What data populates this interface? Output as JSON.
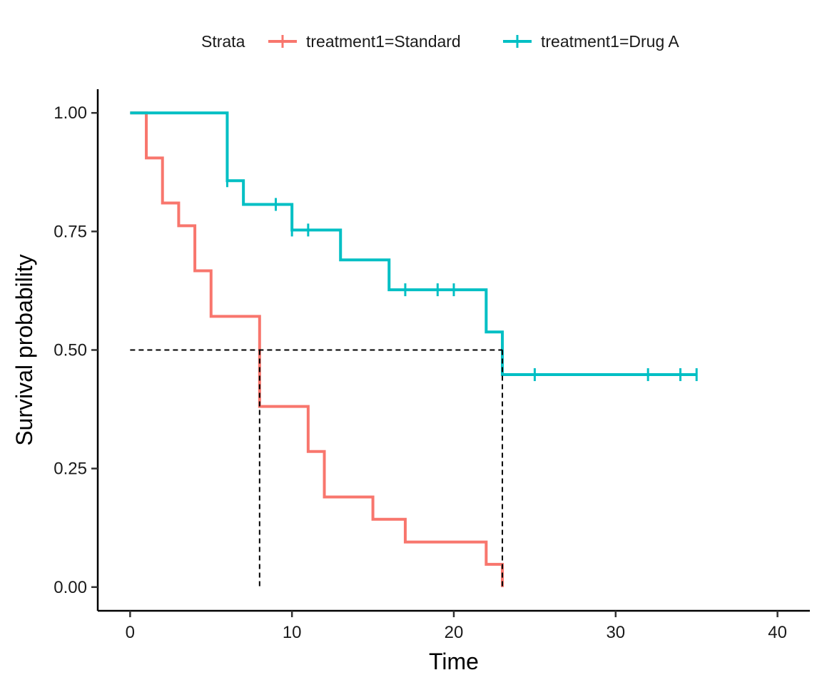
{
  "chart_data": {
    "type": "line",
    "subtype": "kaplan-meier-step",
    "xlabel": "Time",
    "ylabel": "Survival probability",
    "xlim": [
      -2,
      42
    ],
    "ylim": [
      -0.05,
      1.05
    ],
    "x_ticks": [
      "0",
      "10",
      "20",
      "30",
      "40"
    ],
    "y_ticks": [
      "0.00",
      "0.25",
      "0.50",
      "0.75",
      "1.00"
    ],
    "legend": {
      "title": "Strata",
      "position": "top",
      "entries": [
        "treatment1=Standard",
        "treatment1=Drug A"
      ]
    },
    "median_line": {
      "y": 0.5,
      "x_values": [
        8,
        23
      ]
    },
    "series": [
      {
        "name": "treatment1=Standard",
        "color": "#F8766D",
        "steps": [
          [
            0,
            1.0
          ],
          [
            1,
            0.905
          ],
          [
            2,
            0.81
          ],
          [
            3,
            0.762
          ],
          [
            4,
            0.667
          ],
          [
            5,
            0.571
          ],
          [
            8,
            0.381
          ],
          [
            11,
            0.286
          ],
          [
            12,
            0.19
          ],
          [
            15,
            0.143
          ],
          [
            17,
            0.095
          ],
          [
            22,
            0.048
          ],
          [
            23,
            0.0
          ]
        ],
        "censor": []
      },
      {
        "name": "treatment1=Drug A",
        "color": "#00BFC4",
        "steps": [
          [
            0,
            1.0
          ],
          [
            6,
            0.857
          ],
          [
            7,
            0.807
          ],
          [
            10,
            0.753
          ],
          [
            13,
            0.69
          ],
          [
            16,
            0.627
          ],
          [
            22,
            0.538
          ],
          [
            23,
            0.448
          ]
        ],
        "end_x": 35,
        "censor": [
          [
            6,
            0.857
          ],
          [
            9,
            0.807
          ],
          [
            10,
            0.753
          ],
          [
            11,
            0.753
          ],
          [
            17,
            0.627
          ],
          [
            19,
            0.627
          ],
          [
            20,
            0.627
          ],
          [
            25,
            0.448
          ],
          [
            32,
            0.448
          ],
          [
            34,
            0.448
          ],
          [
            35,
            0.448
          ]
        ]
      }
    ]
  }
}
